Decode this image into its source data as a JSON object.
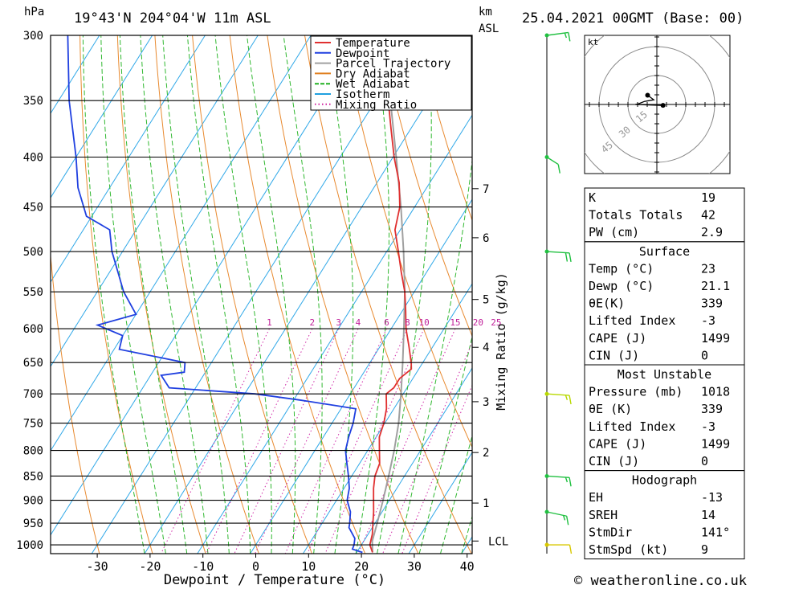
{
  "header": {
    "pressure_unit": "hPa",
    "location": "19°43'N  204°04'W  11m  ASL",
    "km_label": "km",
    "asl_label": "ASL",
    "datetime": "25.04.2021  00GMT  (Base: 00)"
  },
  "footer": {
    "copyright": "© weatheronline.co.uk"
  },
  "chart_data": {
    "type": "skew-t",
    "x_axis_label": "Dewpoint / Temperature (°C)",
    "y_axis_label": "hPa",
    "mixing_axis_label": "Mixing Ratio (g/kg)",
    "pressure_levels": [
      300,
      350,
      400,
      450,
      500,
      550,
      600,
      650,
      700,
      750,
      800,
      850,
      900,
      950,
      1000
    ],
    "temperature_ticks": [
      -30,
      -20,
      -10,
      0,
      10,
      20,
      30,
      40
    ],
    "km_levels": [
      {
        "km": "7",
        "p": 431
      },
      {
        "km": "6",
        "p": 484
      },
      {
        "km": "5",
        "p": 560
      },
      {
        "km": "4",
        "p": 627
      },
      {
        "km": "3",
        "p": 713
      },
      {
        "km": "2",
        "p": 804
      },
      {
        "km": "1",
        "p": 906
      },
      {
        "km": "LCL",
        "p": 991
      }
    ],
    "mixing_ratios": [
      "1",
      "2",
      "3",
      "4",
      "6",
      "8",
      "10",
      "15",
      "20",
      "25"
    ],
    "legend": [
      {
        "name": "Temperature",
        "color": "#e03030",
        "style": "solid"
      },
      {
        "name": "Dewpoint",
        "color": "#2040e0",
        "style": "solid"
      },
      {
        "name": "Parcel Trajectory",
        "color": "#a0a0a0",
        "style": "solid"
      },
      {
        "name": "Dry Adiabat",
        "color": "#e08020",
        "style": "solid"
      },
      {
        "name": "Wet Adiabat",
        "color": "#20b020",
        "style": "dashed"
      },
      {
        "name": "Isotherm",
        "color": "#20a0e0",
        "style": "solid"
      },
      {
        "name": "Mixing Ratio",
        "color": "#d020a0",
        "style": "dotted"
      }
    ],
    "temperature_profile": [
      [
        1018,
        23.0
      ],
      [
        1000,
        21.6
      ],
      [
        975,
        20.8
      ],
      [
        950,
        19.6
      ],
      [
        925,
        18.4
      ],
      [
        900,
        17.0
      ],
      [
        875,
        15.6
      ],
      [
        850,
        14.4
      ],
      [
        825,
        13.8
      ],
      [
        800,
        12.2
      ],
      [
        775,
        10.6
      ],
      [
        750,
        9.8
      ],
      [
        725,
        8.6
      ],
      [
        700,
        6.8
      ],
      [
        690,
        7.5
      ],
      [
        675,
        7.5
      ],
      [
        660,
        8.6
      ],
      [
        650,
        7.8
      ],
      [
        625,
        5.4
      ],
      [
        600,
        2.8
      ],
      [
        575,
        0.6
      ],
      [
        550,
        -1.8
      ],
      [
        525,
        -4.8
      ],
      [
        500,
        -7.8
      ],
      [
        475,
        -11.0
      ],
      [
        450,
        -12.8
      ],
      [
        425,
        -15.8
      ],
      [
        400,
        -19.8
      ],
      [
        375,
        -23.6
      ],
      [
        350,
        -27.6
      ],
      [
        325,
        -32.0
      ],
      [
        300,
        -36.8
      ]
    ],
    "dewpoint_profile": [
      [
        1018,
        21.1
      ],
      [
        1010,
        18.8
      ],
      [
        1000,
        18.6
      ],
      [
        985,
        18.0
      ],
      [
        960,
        15.6
      ],
      [
        950,
        15.2
      ],
      [
        925,
        14.0
      ],
      [
        900,
        12.0
      ],
      [
        875,
        11.0
      ],
      [
        850,
        9.4
      ],
      [
        825,
        7.6
      ],
      [
        800,
        5.8
      ],
      [
        775,
        4.8
      ],
      [
        750,
        4.0
      ],
      [
        725,
        2.8
      ],
      [
        720,
        -1.0
      ],
      [
        710,
        -9.0
      ],
      [
        700,
        -18.0
      ],
      [
        690,
        -35.0
      ],
      [
        670,
        -38.0
      ],
      [
        665,
        -34.0
      ],
      [
        650,
        -35.0
      ],
      [
        630,
        -49.0
      ],
      [
        610,
        -50.0
      ],
      [
        595,
        -56.0
      ],
      [
        580,
        -50.0
      ],
      [
        550,
        -55.0
      ],
      [
        500,
        -62.0
      ],
      [
        475,
        -65.0
      ],
      [
        460,
        -71.0
      ],
      [
        430,
        -76.0
      ],
      [
        400,
        -80.0
      ],
      [
        350,
        -88.0
      ],
      [
        300,
        -96.0
      ]
    ],
    "parcel_profile": [
      [
        1018,
        23.0
      ],
      [
        991,
        21.6
      ],
      [
        950,
        20.4
      ],
      [
        900,
        18.8
      ],
      [
        850,
        17.0
      ],
      [
        800,
        15.0
      ],
      [
        750,
        12.6
      ],
      [
        700,
        9.6
      ],
      [
        650,
        6.2
      ],
      [
        600,
        2.4
      ],
      [
        550,
        -1.8
      ],
      [
        500,
        -6.8
      ],
      [
        450,
        -12.6
      ],
      [
        400,
        -19.4
      ],
      [
        350,
        -27.2
      ],
      [
        300,
        -36.0
      ]
    ],
    "wind_profile": [
      {
        "p": 300,
        "dir": 250,
        "kt": 15
      },
      {
        "p": 400,
        "dir": 330,
        "kt": 10
      },
      {
        "p": 500,
        "dir": 280,
        "kt": 20
      },
      {
        "p": 700,
        "dir": 280,
        "kt": 15
      },
      {
        "p": 850,
        "dir": 280,
        "kt": 15
      },
      {
        "p": 925,
        "dir": 300,
        "kt": 15
      },
      {
        "p": 1000,
        "dir": 270,
        "kt": 10
      }
    ]
  },
  "hodograph": {
    "unit": "kt",
    "rings": [
      "15",
      "30",
      "45"
    ],
    "points": [
      [
        -3,
        3
      ],
      [
        -1,
        1.5
      ],
      [
        -4,
        1
      ],
      [
        -6,
        0.2
      ],
      [
        -7,
        0
      ],
      [
        2,
        -0.3
      ]
    ]
  },
  "stats": {
    "top": [
      {
        "label": "K",
        "value": "19"
      },
      {
        "label": "Totals Totals",
        "value": "42"
      },
      {
        "label": "PW (cm)",
        "value": "2.9"
      }
    ],
    "surface_title": "Surface",
    "surface": [
      {
        "label": "Temp (°C)",
        "value": "23"
      },
      {
        "label": "Dewp (°C)",
        "value": "21.1"
      },
      {
        "label": "θE(K)",
        "value": "339"
      },
      {
        "label": "Lifted Index",
        "value": "-3"
      },
      {
        "label": "CAPE (J)",
        "value": "1499"
      },
      {
        "label": "CIN (J)",
        "value": "0"
      }
    ],
    "unstable_title": "Most Unstable",
    "unstable": [
      {
        "label": "Pressure (mb)",
        "value": "1018"
      },
      {
        "label": "θE (K)",
        "value": "339"
      },
      {
        "label": "Lifted Index",
        "value": "-3"
      },
      {
        "label": "CAPE (J)",
        "value": "1499"
      },
      {
        "label": "CIN (J)",
        "value": "0"
      }
    ],
    "hodo_title": "Hodograph",
    "hodo": [
      {
        "label": "EH",
        "value": "-13"
      },
      {
        "label": "SREH",
        "value": "14"
      },
      {
        "label": "StmDir",
        "value": "141°"
      },
      {
        "label": "StmSpd (kt)",
        "value": "9"
      }
    ]
  }
}
